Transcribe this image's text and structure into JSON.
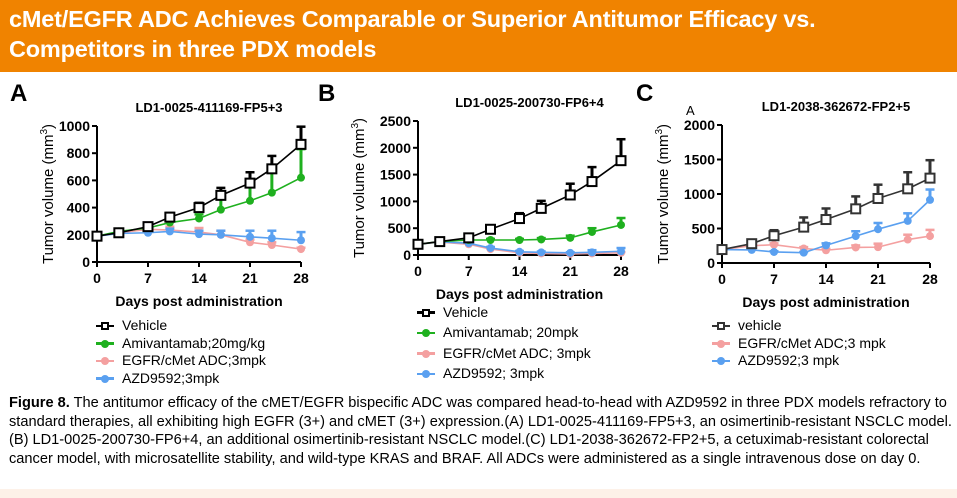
{
  "header": {
    "title": "cMet/EGFR ADC Achieves Comparable or Superior Antitumor Efficacy vs. Competitors in three PDX models",
    "background_color": "#f08300"
  },
  "caption": {
    "label": "Figure 8.",
    "text": " The antitumor efficacy of the cMET/EGFR bispecific ADC was compared head-to-head with AZD9592 in three PDX models refractory to standard therapies, all exhibiting high EGFR (3+) and cMET (3+) expression.(A) LD1-0025-411169-FP5+3, an osimertinib-resistant NSCLC model.(B) LD1-0025-200730-FP6+4, an additional osimertinib-resistant NSCLC model.(C) LD1-2038-362672-FP2+5, a cetuximab-resistant colorectal cancer model, with microsatellite stability, and wild-type KRAS and BRAF. All ADCs were administered as a single intravenous dose on day 0."
  },
  "colors": {
    "vehicle": "#000000",
    "vehicle_c": "#333333",
    "amivantamab": "#1fb01f",
    "adc": "#f4a0a0",
    "azd9592": "#5aa0f0"
  },
  "chart_data": [
    {
      "panel": "A",
      "type": "line",
      "title": "LD1-0025-411169-FP5+3",
      "xlabel": "Days post administration",
      "ylabel": "Tumor volume (mm³)",
      "ylabel_main": "Tumor volume (mm",
      "ylabel_sup": "3",
      "ylabel_end": ")",
      "xlim": [
        0,
        28
      ],
      "ylim": [
        0,
        1000
      ],
      "xticks": [
        0,
        7,
        14,
        21,
        28
      ],
      "yticks": [
        0,
        200,
        400,
        600,
        800,
        1000
      ],
      "grid": false,
      "legend_position": "bottom",
      "series": [
        {
          "key": "vehicle",
          "name": "Vehicle",
          "marker": "square-open",
          "x": [
            0,
            3,
            7,
            10,
            14,
            17,
            21,
            24,
            28
          ],
          "values": [
            190,
            215,
            260,
            330,
            400,
            490,
            580,
            685,
            865
          ],
          "error": [
            0,
            10,
            20,
            30,
            35,
            55,
            80,
            95,
            130
          ]
        },
        {
          "key": "amivantamab",
          "name": "Amivantamab;20mg/kg",
          "marker": "circle",
          "x": [
            0,
            3,
            7,
            10,
            14,
            17,
            21,
            24,
            28
          ],
          "values": [
            190,
            225,
            250,
            290,
            320,
            385,
            450,
            510,
            620
          ],
          "error": [
            0,
            10,
            15,
            25,
            30,
            90,
            110,
            150,
            210
          ]
        },
        {
          "key": "adc",
          "name": "EGFR/cMet ADC;3mpk",
          "marker": "circle",
          "x": [
            0,
            3,
            7,
            10,
            14,
            17,
            21,
            24,
            28
          ],
          "values": [
            190,
            215,
            240,
            235,
            220,
            200,
            145,
            125,
            95
          ],
          "error": [
            0,
            10,
            15,
            25,
            30,
            30,
            20,
            20,
            10
          ]
        },
        {
          "key": "azd9592",
          "name": "AZD9592;3mpk",
          "marker": "circle",
          "x": [
            0,
            3,
            7,
            10,
            14,
            17,
            21,
            24,
            28
          ],
          "values": [
            190,
            210,
            215,
            225,
            205,
            200,
            185,
            175,
            160
          ],
          "error": [
            0,
            10,
            15,
            20,
            25,
            30,
            45,
            55,
            60
          ]
        }
      ]
    },
    {
      "panel": "B",
      "type": "line",
      "title": "LD1-0025-200730-FP6+4",
      "xlabel": "Days post administration",
      "ylabel": "Tumor volume (mm³)",
      "ylabel_main": "Tumor volume (mm",
      "ylabel_sup": "3",
      "ylabel_end": ")",
      "xlim": [
        0,
        28
      ],
      "ylim": [
        0,
        2500
      ],
      "xticks": [
        0,
        7,
        14,
        21,
        28
      ],
      "yticks": [
        0,
        500,
        1000,
        1500,
        2000,
        2500
      ],
      "grid": false,
      "legend_position": "bottom",
      "series": [
        {
          "key": "vehicle",
          "name": "Vehicle",
          "marker": "square-open",
          "x": [
            0,
            3,
            7,
            10,
            14,
            17,
            21,
            24,
            28
          ],
          "values": [
            200,
            250,
            320,
            480,
            680,
            870,
            1120,
            1370,
            1760
          ],
          "error": [
            0,
            15,
            30,
            60,
            100,
            140,
            210,
            270,
            400
          ]
        },
        {
          "key": "amivantamab",
          "name": "Amivantamab; 20mpk",
          "marker": "circle",
          "x": [
            0,
            3,
            7,
            10,
            14,
            17,
            21,
            24,
            28
          ],
          "values": [
            200,
            250,
            280,
            280,
            280,
            290,
            320,
            430,
            560
          ],
          "error": [
            0,
            15,
            20,
            20,
            20,
            25,
            40,
            70,
            130
          ]
        },
        {
          "key": "adc",
          "name": "EGFR/cMet ADC; 3mpk",
          "marker": "circle",
          "x": [
            0,
            3,
            7,
            10,
            14,
            17,
            21,
            24,
            28
          ],
          "values": [
            200,
            240,
            200,
            110,
            40,
            30,
            20,
            30,
            40
          ],
          "error": [
            0,
            10,
            20,
            15,
            10,
            10,
            5,
            10,
            15
          ]
        },
        {
          "key": "azd9592",
          "name": "AZD9592; 3mpk",
          "marker": "circle",
          "x": [
            0,
            3,
            7,
            10,
            14,
            17,
            21,
            24,
            28
          ],
          "values": [
            200,
            245,
            220,
            130,
            60,
            50,
            40,
            50,
            70
          ],
          "error": [
            0,
            10,
            20,
            20,
            15,
            15,
            10,
            40,
            60
          ]
        }
      ]
    },
    {
      "panel": "C",
      "type": "line",
      "title": "LD1-2038-362672-FP2+5",
      "corner_label": "A",
      "xlabel": "Days post administration",
      "ylabel": "Tumor volume (mm³)",
      "ylabel_main": "Tumor volume (mm",
      "ylabel_sup": "3",
      "ylabel_end": ")",
      "xlim": [
        0,
        28
      ],
      "ylim": [
        0,
        2000
      ],
      "xticks": [
        0,
        7,
        14,
        21,
        28
      ],
      "yticks": [
        0,
        500,
        1000,
        1500,
        2000
      ],
      "grid": false,
      "legend_position": "bottom",
      "series": [
        {
          "key": "vehicle_c",
          "name": "vehicle",
          "marker": "square-open",
          "x": [
            0,
            4,
            7,
            11,
            14,
            18,
            21,
            25,
            28
          ],
          "values": [
            195,
            280,
            395,
            520,
            630,
            785,
            935,
            1075,
            1230
          ],
          "error": [
            0,
            50,
            80,
            140,
            160,
            180,
            200,
            240,
            260
          ]
        },
        {
          "key": "adc",
          "name": "EGFR/cMet ADC;3 mpk",
          "marker": "circle",
          "x": [
            0,
            4,
            7,
            11,
            14,
            18,
            21,
            25,
            28
          ],
          "values": [
            195,
            250,
            265,
            210,
            185,
            225,
            230,
            340,
            390
          ],
          "error": [
            0,
            20,
            20,
            20,
            20,
            30,
            50,
            70,
            90
          ]
        },
        {
          "key": "azd9592",
          "name": "AZD9592;3 mpk",
          "marker": "circle",
          "x": [
            0,
            4,
            7,
            11,
            14,
            18,
            21,
            25,
            28
          ],
          "values": [
            195,
            190,
            160,
            150,
            255,
            390,
            490,
            610,
            915
          ],
          "error": [
            0,
            10,
            10,
            10,
            30,
            70,
            90,
            110,
            150
          ]
        }
      ]
    }
  ]
}
